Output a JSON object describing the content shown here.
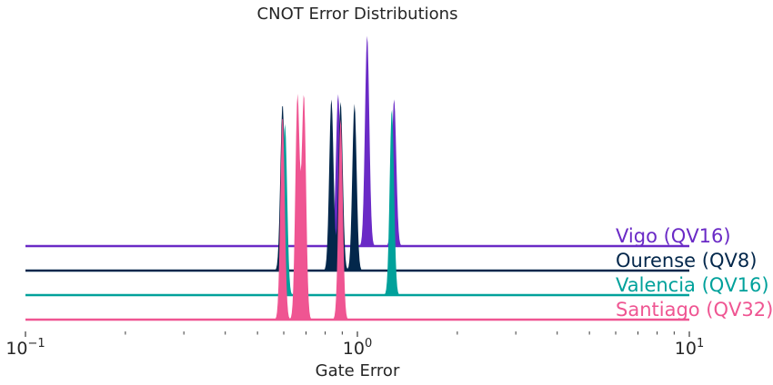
{
  "chart_data": {
    "type": "area",
    "title": "CNOT Error Distributions",
    "xlabel": "Gate Error",
    "ylabel": "",
    "x_scale": "log",
    "xlim": [
      0.1,
      10
    ],
    "x_ticks": [
      {
        "value": 0.1,
        "base": "10",
        "exp": "−1"
      },
      {
        "value": 1,
        "base": "10",
        "exp": "0"
      },
      {
        "value": 10,
        "base": "10",
        "exp": "1"
      }
    ],
    "grid": false,
    "legend": "inline labels at right end of each ridge line",
    "series": [
      {
        "name": "Vigo (QV16)",
        "color": "#6a2ac6",
        "peaks": [
          {
            "x": 0.875,
            "height": 0.62
          },
          {
            "x": 1.07,
            "height": 0.86
          },
          {
            "x": 1.29,
            "height": 0.6
          }
        ]
      },
      {
        "name": "Ourense (QV8)",
        "color": "#03274b",
        "peaks": [
          {
            "x": 0.595,
            "height": 0.68
          },
          {
            "x": 0.835,
            "height": 0.7
          },
          {
            "x": 0.89,
            "height": 0.69
          },
          {
            "x": 0.98,
            "height": 0.68
          }
        ]
      },
      {
        "name": "Valencia (QV16)",
        "color": "#00a19b",
        "peaks": [
          {
            "x": 0.605,
            "height": 0.7
          },
          {
            "x": 1.27,
            "height": 0.76
          }
        ]
      },
      {
        "name": "Santiago (QV32)",
        "color": "#ef5592",
        "peaks": [
          {
            "x": 0.595,
            "height": 0.83
          },
          {
            "x": 0.66,
            "height": 0.91
          },
          {
            "x": 0.69,
            "height": 0.91
          },
          {
            "x": 0.89,
            "height": 0.82
          }
        ]
      }
    ]
  }
}
